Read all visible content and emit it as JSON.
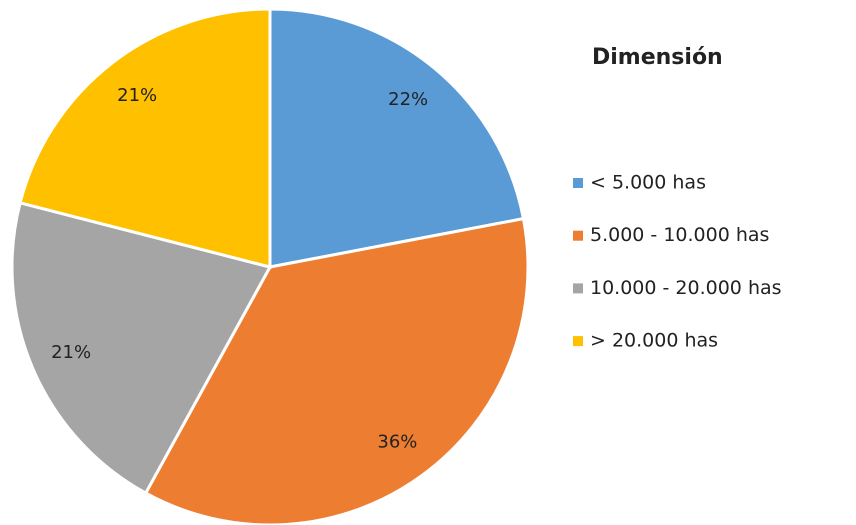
{
  "chart_data": {
    "type": "pie",
    "legend_title": "Dimensión",
    "categories": [
      "< 5.000 has",
      "5.000 - 10.000 has",
      "10.000 - 20.000 has",
      "> 20.000 has"
    ],
    "values": [
      22,
      36,
      21,
      21
    ],
    "value_labels": [
      "22%",
      "36%",
      "21%",
      "21%"
    ],
    "colors": [
      "#5b9bd5",
      "#ed7d31",
      "#a5a5a5",
      "#ffc000"
    ],
    "legend": "right"
  }
}
